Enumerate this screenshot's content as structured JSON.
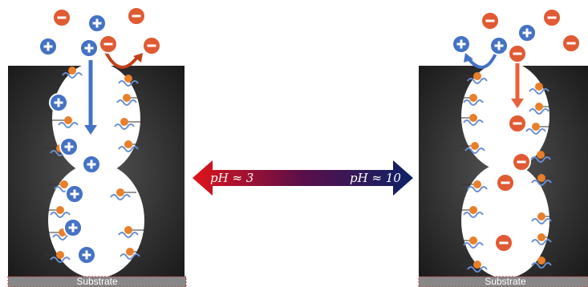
{
  "left_panel": {
    "substrate": "Substrate"
  },
  "right_panel": {
    "substrate": "Substrate"
  },
  "ph_arrow": {
    "left_label": "pH ≈ 3",
    "right_label": "pH ≈ 10"
  }
}
